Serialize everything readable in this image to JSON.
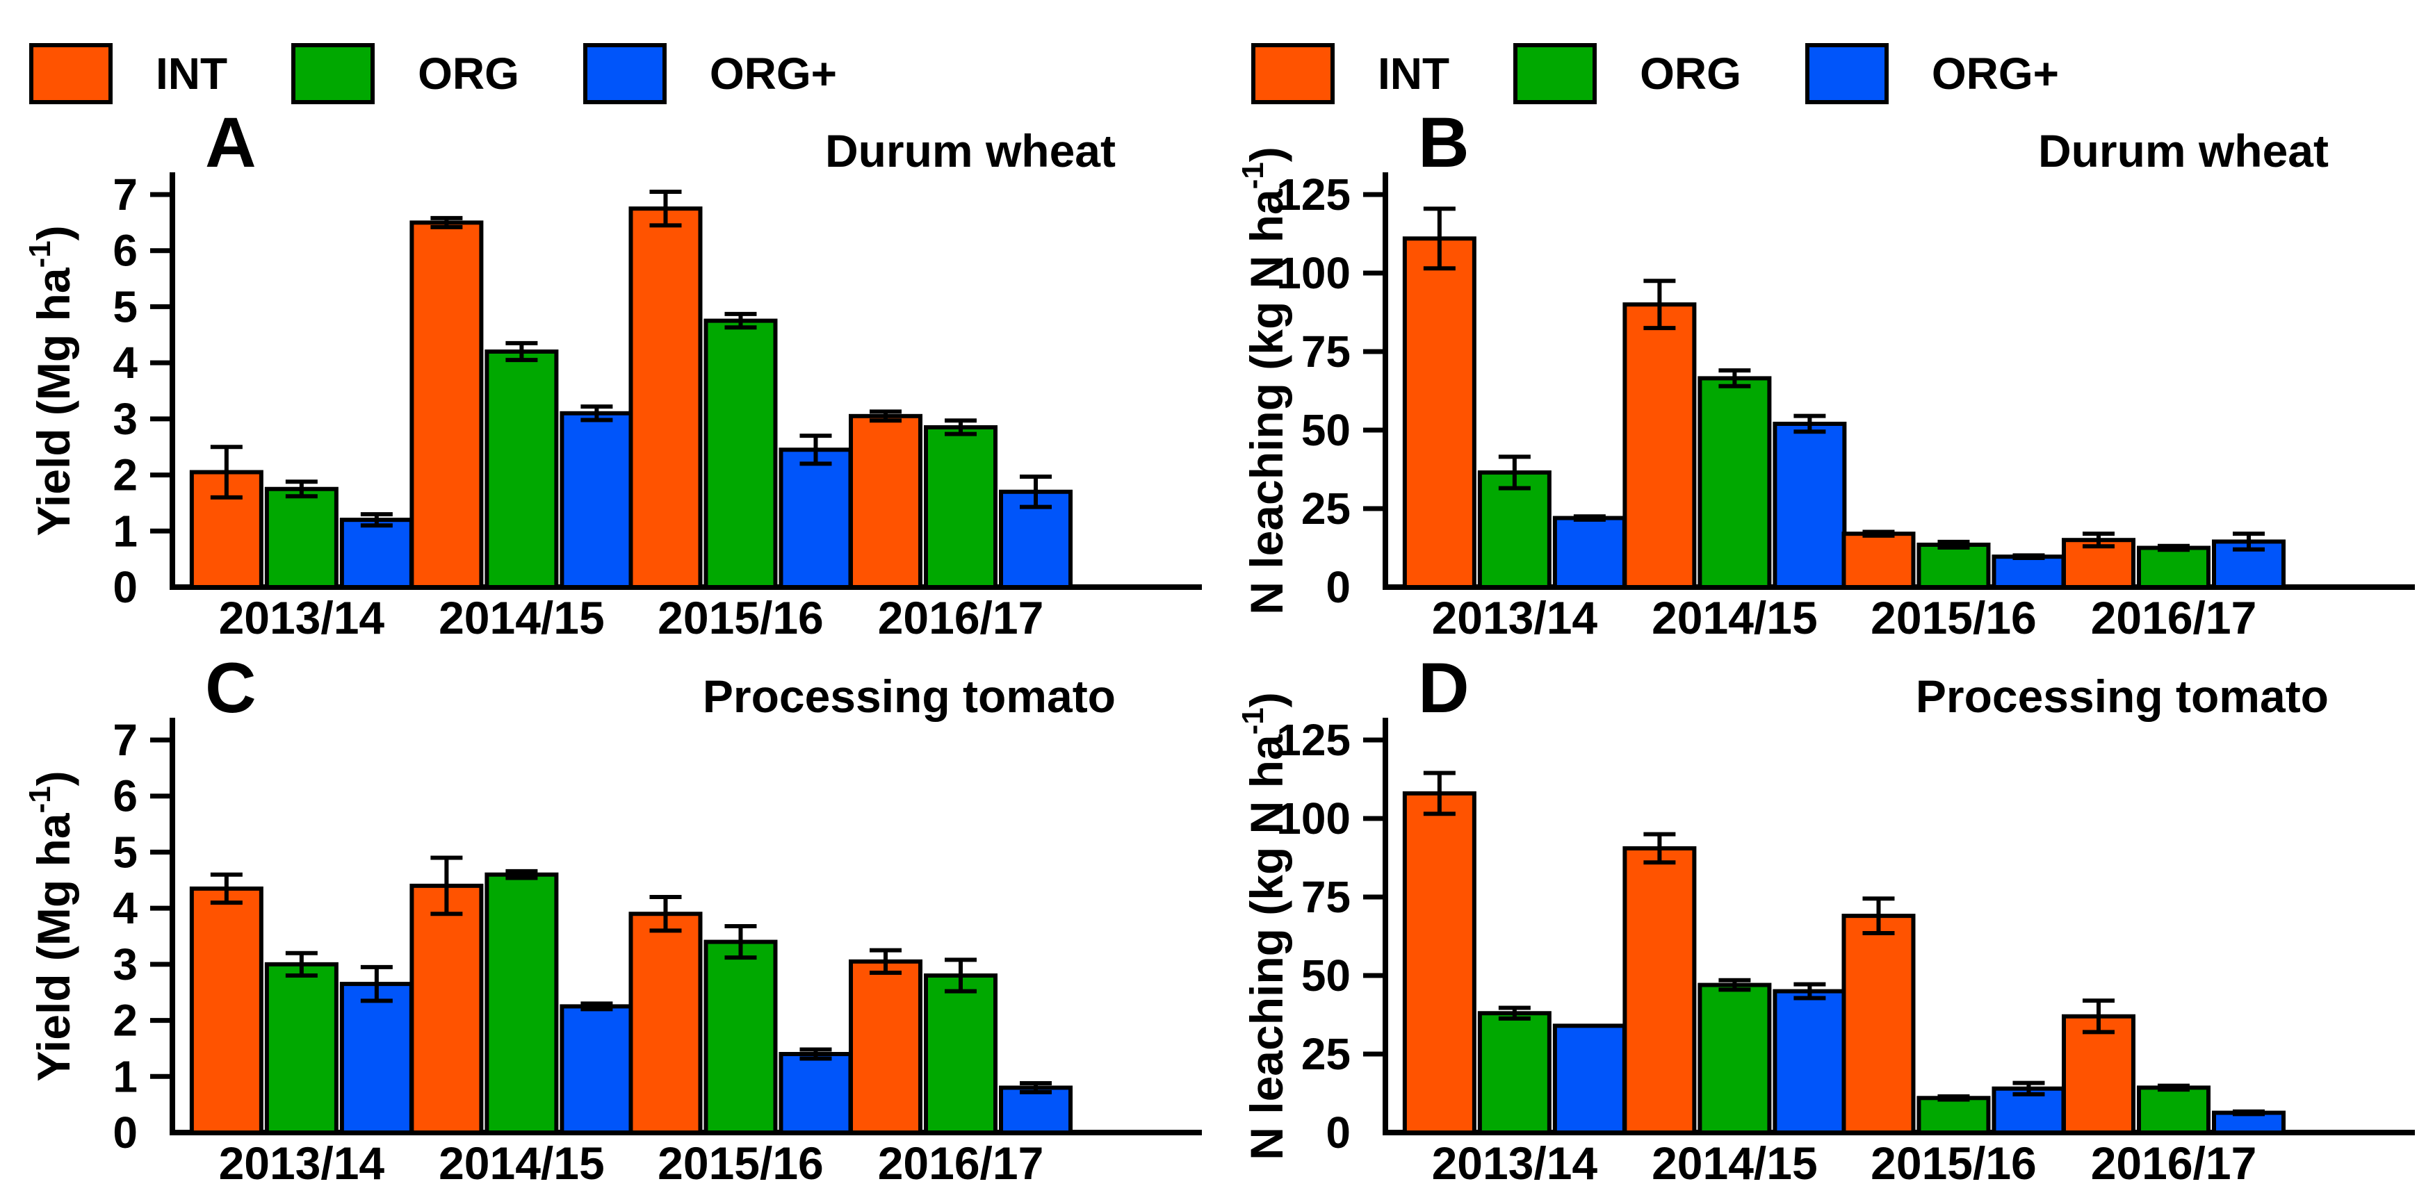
{
  "legend": {
    "items": [
      {
        "label": "INT",
        "color": "#FF5300"
      },
      {
        "label": "ORG",
        "color": "#00A800"
      },
      {
        "label": "ORG+",
        "color": "#0055FA"
      }
    ]
  },
  "chart_data": {
    "type": "bar",
    "grid": false,
    "legend_position": "top",
    "categories": [
      "2013/14",
      "2014/15",
      "2015/16",
      "2016/17"
    ],
    "panels": [
      {
        "letter": "A",
        "title": "Durum wheat",
        "ylabel": "Yield (Mg ha⁻¹)",
        "ylim": [
          0,
          7
        ],
        "yticks": [
          0,
          1,
          2,
          3,
          4,
          5,
          6,
          7
        ],
        "series": [
          {
            "name": "INT",
            "color": "#FF5300",
            "values": [
              2.05,
              6.5,
              6.75,
              3.05
            ],
            "errors": [
              0.45,
              0.08,
              0.3,
              0.08
            ]
          },
          {
            "name": "ORG",
            "color": "#00A800",
            "values": [
              1.75,
              4.2,
              4.75,
              2.85
            ],
            "errors": [
              0.13,
              0.15,
              0.12,
              0.12
            ]
          },
          {
            "name": "ORG+",
            "color": "#0055FA",
            "values": [
              1.2,
              3.1,
              2.45,
              1.7
            ],
            "errors": [
              0.1,
              0.12,
              0.25,
              0.27
            ]
          }
        ]
      },
      {
        "letter": "B",
        "title": "Durum wheat",
        "ylabel": "N leaching (kg N ha⁻¹)",
        "ylim": [
          0,
          125
        ],
        "yticks": [
          0,
          25,
          50,
          75,
          100,
          125
        ],
        "series": [
          {
            "name": "INT",
            "color": "#FF5300",
            "values": [
              111,
              90,
              17,
              15
            ],
            "errors": [
              9.5,
              7.5,
              0.6,
              2
            ]
          },
          {
            "name": "ORG",
            "color": "#00A800",
            "values": [
              36.5,
              66.5,
              13.5,
              12.5
            ],
            "errors": [
              5,
              2.5,
              0.9,
              0.6
            ]
          },
          {
            "name": "ORG+",
            "color": "#0055FA",
            "values": [
              22,
              52,
              9.7,
              14.5
            ],
            "errors": [
              0.5,
              2.5,
              0.4,
              2.5
            ]
          }
        ]
      },
      {
        "letter": "C",
        "title": "Processing tomato",
        "ylabel": "Yield (Mg ha⁻¹)",
        "ylim": [
          0,
          7
        ],
        "yticks": [
          0,
          1,
          2,
          3,
          4,
          5,
          6,
          7
        ],
        "series": [
          {
            "name": "INT",
            "color": "#FF5300",
            "values": [
              4.35,
              4.4,
              3.9,
              3.05
            ],
            "errors": [
              0.25,
              0.5,
              0.3,
              0.2
            ]
          },
          {
            "name": "ORG",
            "color": "#00A800",
            "values": [
              3.0,
              4.6,
              3.4,
              2.8
            ],
            "errors": [
              0.2,
              0.06,
              0.28,
              0.28
            ]
          },
          {
            "name": "ORG+",
            "color": "#0055FA",
            "values": [
              2.65,
              2.25,
              1.4,
              0.8
            ],
            "errors": [
              0.3,
              0.05,
              0.08,
              0.08
            ]
          }
        ]
      },
      {
        "letter": "D",
        "title": "Processing tomato",
        "ylabel": "N leaching (kg N ha⁻¹)",
        "ylim": [
          0,
          125
        ],
        "yticks": [
          0,
          25,
          50,
          75,
          100,
          125
        ],
        "series": [
          {
            "name": "INT",
            "color": "#FF5300",
            "values": [
              108,
              90.5,
              69,
              37
            ],
            "errors": [
              6.5,
              4.5,
              5.5,
              5
            ]
          },
          {
            "name": "ORG",
            "color": "#00A800",
            "values": [
              38,
              47,
              11,
              14.3
            ],
            "errors": [
              1.7,
              1.5,
              0.5,
              0.6
            ]
          },
          {
            "name": "ORG+",
            "color": "#0055FA",
            "values": [
              34,
              45,
              14,
              6.3
            ],
            "errors": [
              0.3,
              2.2,
              1.8,
              0.4
            ]
          }
        ]
      }
    ]
  }
}
